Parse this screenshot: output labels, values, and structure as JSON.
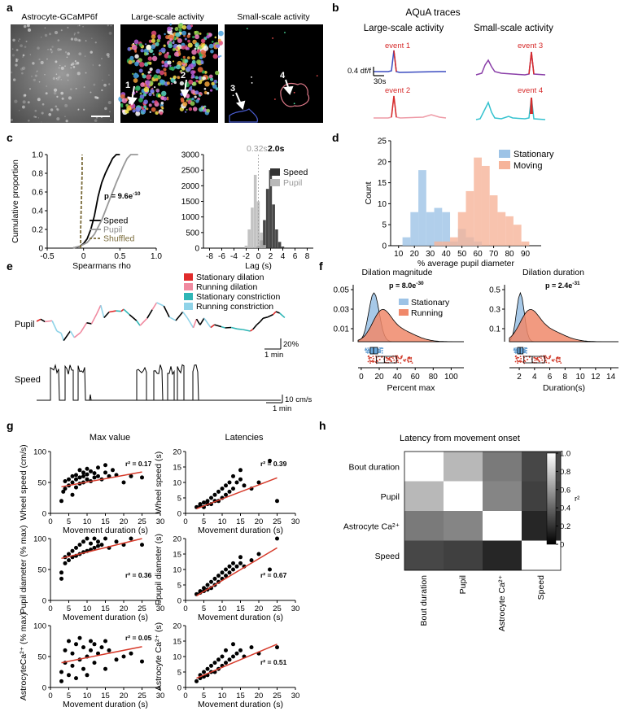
{
  "panels": {
    "a": {
      "letter": "a",
      "titles": [
        "Astrocyte-GCaMP6f",
        "Large-scale activity",
        "Small-scale activity"
      ],
      "markers": [
        "1",
        "2",
        "3",
        "4"
      ]
    },
    "b": {
      "letter": "b",
      "title": "AQuA traces",
      "col_titles": [
        "Large-scale activity",
        "Small-scale activity"
      ],
      "events": [
        "event 1",
        "event 2",
        "event 3",
        "event 4"
      ],
      "scale_y": "0.4 df/f",
      "scale_x": "30s"
    },
    "c": {
      "letter": "c",
      "p_value": "p = 9.6e",
      "p_exp": "-10",
      "top_labels": [
        "0.32s",
        "2.0s"
      ]
    },
    "d": {
      "letter": "d"
    },
    "e": {
      "letter": "e",
      "pupil_label": "Pupil",
      "speed_label": "Speed",
      "legend": [
        "Stationary dilation",
        "Running dilation",
        "Stationary constriction",
        "Running constriction"
      ],
      "legend_colors": [
        "#e02b2b",
        "#f08aa0",
        "#2fb6b6",
        "#8fd3e8"
      ],
      "pupil_scale": "20%",
      "time_scale": "1 min",
      "speed_scale": "10 cm/s"
    },
    "f": {
      "letter": "f",
      "left_title": "Dilation magnitude",
      "left_p": "p = 8.0e",
      "left_p_exp": "-30",
      "right_title": "Dilation duration",
      "right_p": "p = 2.4e",
      "right_p_exp": "-31",
      "legend": [
        "Stationary",
        "Running"
      ],
      "left_yticks": [
        "0.05",
        "0.03",
        "0.01"
      ],
      "right_yticks": [
        "0.5",
        "0.3",
        "0.1"
      ],
      "left_xticks": [
        "0",
        "20",
        "40",
        "60",
        "80",
        "100"
      ],
      "right_xticks": [
        "2",
        "4",
        "6",
        "8",
        "10",
        "12",
        "14"
      ],
      "left_xlabel": "Percent max",
      "right_xlabel": "Duration(s)"
    },
    "g": {
      "letter": "g",
      "col_titles": [
        "Max value",
        "Latencies"
      ],
      "xlabel": "Movement duration (s)",
      "xticks": [
        "0",
        "5",
        "10",
        "15",
        "20",
        "25",
        "30"
      ]
    },
    "h": {
      "letter": "h",
      "title": "Latency from movement onset",
      "row_labels": [
        "Bout duration",
        "Pupil",
        "Astrocyte Ca²⁺",
        "Speed"
      ],
      "col_labels": [
        "Bout duration",
        "Pupil",
        "Astrocyte Ca²⁺",
        "Speed"
      ],
      "colorbar_ticks": [
        "1.0",
        "0.8",
        "0.6",
        "0.4",
        "0.2",
        "0"
      ],
      "colorbar_label": "r²"
    }
  },
  "chart_data": [
    {
      "id": "c-left",
      "type": "line",
      "xlabel": "Spearmans rho",
      "ylabel": "Cumulative proportion",
      "xlim": [
        -0.5,
        1.0
      ],
      "ylim": [
        0,
        1.0
      ],
      "xticks": [
        -0.5,
        0,
        0.5,
        1.0
      ],
      "yticks": [
        0,
        0.2,
        0.4,
        0.6,
        0.8,
        1.0
      ],
      "series": [
        {
          "name": "Speed",
          "color": "#000000",
          "x": [
            -0.15,
            -0.05,
            0.0,
            0.05,
            0.1,
            0.15,
            0.2,
            0.25,
            0.3,
            0.35,
            0.4,
            0.45,
            0.5
          ],
          "y": [
            0,
            0.02,
            0.05,
            0.1,
            0.2,
            0.35,
            0.55,
            0.7,
            0.8,
            0.88,
            0.96,
            1.0,
            1.0
          ]
        },
        {
          "name": "Pupil",
          "color": "#999999",
          "x": [
            -0.15,
            -0.05,
            0.05,
            0.15,
            0.25,
            0.35,
            0.45,
            0.55,
            0.6,
            0.65,
            0.75
          ],
          "y": [
            0,
            0.02,
            0.06,
            0.15,
            0.3,
            0.5,
            0.7,
            0.88,
            0.96,
            1.0,
            1.0
          ]
        },
        {
          "name": "Shuffled",
          "color": "#7a6b3a",
          "dashed": true,
          "x": [
            -0.04,
            -0.04,
            -0.03,
            -0.02,
            -0.02
          ],
          "y": [
            0,
            0.2,
            0.5,
            0.8,
            1.0
          ]
        }
      ]
    },
    {
      "id": "c-right",
      "type": "bar",
      "xlabel": "Lag (s)",
      "ylabel": "",
      "xlim": [
        -9,
        9
      ],
      "ylim": [
        0,
        3000
      ],
      "xticks": [
        -8,
        -6,
        -4,
        -2,
        0,
        2,
        4,
        6,
        8
      ],
      "yticks": [
        0,
        500,
        1000,
        1500,
        2000,
        2500,
        3000
      ],
      "series": [
        {
          "name": "Speed",
          "color": "#333333",
          "x": [
            0,
            0.5,
            1,
            1.5,
            2,
            2.5,
            3,
            3.5,
            4
          ],
          "y": [
            60,
            250,
            900,
            1900,
            2500,
            1400,
            600,
            200,
            50
          ]
        },
        {
          "name": "Pupil",
          "color": "#b8b8b8",
          "x": [
            -2,
            -1.5,
            -1,
            -0.5,
            0,
            0.5,
            1
          ],
          "y": [
            80,
            600,
            1300,
            2350,
            1500,
            500,
            100
          ]
        }
      ]
    },
    {
      "id": "d",
      "type": "bar",
      "xlabel": "% average pupil diameter",
      "ylabel": "Count",
      "xlim": [
        5,
        100
      ],
      "ylim": [
        0,
        25
      ],
      "xticks": [
        10,
        20,
        30,
        40,
        50,
        60,
        70,
        80,
        90
      ],
      "yticks": [
        0,
        5,
        10,
        15,
        20,
        25
      ],
      "series": [
        {
          "name": "Stationary",
          "color": "#9dc3e6",
          "x": [
            15,
            20,
            25,
            30,
            35,
            40,
            45,
            50,
            55,
            60
          ],
          "y": [
            2,
            8,
            18,
            8,
            9,
            8,
            1,
            4,
            2,
            1
          ]
        },
        {
          "name": "Moving",
          "color": "#f6b49a",
          "x": [
            35,
            40,
            45,
            50,
            55,
            60,
            65,
            70,
            75,
            80,
            85,
            90
          ],
          "y": [
            1,
            1,
            2,
            8,
            13,
            21,
            19,
            12,
            8,
            7,
            5,
            1
          ]
        }
      ]
    },
    {
      "id": "g-wheel-max",
      "type": "scatter",
      "xlabel": "Movement duration (s)",
      "ylabel": "Wheel speed (cm/s)",
      "xlim": [
        0,
        30
      ],
      "ylim": [
        0,
        100
      ],
      "yticks": [
        0,
        50,
        100
      ],
      "r2": "r² = 0.17",
      "fit": [
        [
          3,
          43
        ],
        [
          25,
          67
        ]
      ],
      "points": [
        [
          3,
          20
        ],
        [
          3.5,
          35
        ],
        [
          4,
          40
        ],
        [
          4,
          52
        ],
        [
          5,
          45
        ],
        [
          5,
          55
        ],
        [
          6,
          30
        ],
        [
          6,
          50
        ],
        [
          6,
          60
        ],
        [
          7,
          42
        ],
        [
          7,
          55
        ],
        [
          7,
          62
        ],
        [
          8,
          48
        ],
        [
          8,
          58
        ],
        [
          8,
          70
        ],
        [
          9,
          50
        ],
        [
          9,
          60
        ],
        [
          9,
          66
        ],
        [
          10,
          55
        ],
        [
          10,
          63
        ],
        [
          10,
          72
        ],
        [
          11,
          52
        ],
        [
          11,
          68
        ],
        [
          12,
          58
        ],
        [
          12,
          65
        ],
        [
          13,
          60
        ],
        [
          13,
          74
        ],
        [
          14,
          55
        ],
        [
          15,
          66
        ],
        [
          15,
          78
        ],
        [
          16,
          60
        ],
        [
          17,
          70
        ],
        [
          18,
          62
        ],
        [
          20,
          50
        ],
        [
          22,
          60
        ],
        [
          25,
          58
        ]
      ]
    },
    {
      "id": "g-wheel-lat",
      "type": "scatter",
      "xlabel": "Movement duration (s)",
      "ylabel": "Wheel speed (s)",
      "xlim": [
        0,
        30
      ],
      "ylim": [
        0,
        20
      ],
      "yticks": [
        0,
        5,
        10,
        15,
        20
      ],
      "r2": "r² = 0.39",
      "fit": [
        [
          3,
          1.5
        ],
        [
          25,
          11.5
        ]
      ],
      "points": [
        [
          3,
          2
        ],
        [
          4,
          2.5
        ],
        [
          4,
          3
        ],
        [
          5,
          2
        ],
        [
          5,
          3.5
        ],
        [
          6,
          3
        ],
        [
          6,
          4
        ],
        [
          7,
          3
        ],
        [
          7,
          5
        ],
        [
          8,
          4
        ],
        [
          8,
          6
        ],
        [
          9,
          4
        ],
        [
          9,
          7
        ],
        [
          10,
          5
        ],
        [
          10,
          8
        ],
        [
          11,
          6
        ],
        [
          11,
          9
        ],
        [
          12,
          7
        ],
        [
          12,
          10
        ],
        [
          13,
          8
        ],
        [
          13,
          12
        ],
        [
          14,
          10
        ],
        [
          15,
          11
        ],
        [
          15,
          14
        ],
        [
          16,
          9
        ],
        [
          18,
          8
        ],
        [
          20,
          10
        ],
        [
          23,
          17
        ],
        [
          25,
          4
        ]
      ]
    },
    {
      "id": "g-pupil-max",
      "type": "scatter",
      "xlabel": "Movement duration (s)",
      "ylabel": "Pupil diameter (% max)",
      "xlim": [
        0,
        30
      ],
      "ylim": [
        0,
        100
      ],
      "yticks": [
        0,
        50,
        100
      ],
      "r2": "r² = 0.36",
      "fit": [
        [
          3,
          68
        ],
        [
          25,
          100
        ]
      ],
      "points": [
        [
          3,
          35
        ],
        [
          3,
          45
        ],
        [
          4,
          60
        ],
        [
          4,
          70
        ],
        [
          5,
          65
        ],
        [
          5,
          75
        ],
        [
          6,
          70
        ],
        [
          6,
          80
        ],
        [
          7,
          72
        ],
        [
          7,
          85
        ],
        [
          8,
          75
        ],
        [
          8,
          90
        ],
        [
          9,
          78
        ],
        [
          9,
          95
        ],
        [
          10,
          80
        ],
        [
          10,
          100
        ],
        [
          11,
          82
        ],
        [
          11,
          92
        ],
        [
          12,
          85
        ],
        [
          12,
          100
        ],
        [
          13,
          88
        ],
        [
          13,
          95
        ],
        [
          14,
          90
        ],
        [
          15,
          100
        ],
        [
          16,
          85
        ],
        [
          18,
          95
        ],
        [
          20,
          90
        ],
        [
          22,
          100
        ],
        [
          25,
          90
        ]
      ]
    },
    {
      "id": "g-pupil-lat",
      "type": "scatter",
      "xlabel": "Movement duration (s)",
      "ylabel": "Ppupil diameter (s)",
      "xlim": [
        0,
        30
      ],
      "ylim": [
        0,
        20
      ],
      "yticks": [
        0,
        5,
        10,
        15,
        20
      ],
      "r2": "r² = 0.67",
      "fit": [
        [
          3,
          1.5
        ],
        [
          25,
          17
        ]
      ],
      "points": [
        [
          3,
          2
        ],
        [
          4,
          2.5
        ],
        [
          4,
          3
        ],
        [
          5,
          3
        ],
        [
          5,
          4
        ],
        [
          6,
          3.5
        ],
        [
          6,
          5
        ],
        [
          7,
          4
        ],
        [
          7,
          6
        ],
        [
          8,
          5
        ],
        [
          8,
          7
        ],
        [
          9,
          6
        ],
        [
          9,
          8
        ],
        [
          10,
          7
        ],
        [
          10,
          9
        ],
        [
          11,
          8
        ],
        [
          11,
          10
        ],
        [
          12,
          9
        ],
        [
          12,
          11
        ],
        [
          13,
          10
        ],
        [
          13,
          12
        ],
        [
          14,
          11
        ],
        [
          15,
          12
        ],
        [
          15,
          14
        ],
        [
          16,
          11
        ],
        [
          18,
          13
        ],
        [
          20,
          15
        ],
        [
          23,
          10
        ],
        [
          25,
          20
        ]
      ]
    },
    {
      "id": "g-astro-max",
      "type": "scatter",
      "xlabel": "Movement duration (s)",
      "ylabel": "AstrocyteCa²⁺ (% max)",
      "xlim": [
        0,
        30
      ],
      "ylim": [
        0,
        100
      ],
      "yticks": [
        0,
        50,
        100
      ],
      "r2": "r² = 0.05",
      "fit": [
        [
          3,
          40
        ],
        [
          25,
          66
        ]
      ],
      "points": [
        [
          3,
          10
        ],
        [
          3,
          25
        ],
        [
          4,
          40
        ],
        [
          4,
          60
        ],
        [
          5,
          20
        ],
        [
          5,
          75
        ],
        [
          6,
          35
        ],
        [
          6,
          55
        ],
        [
          7,
          15
        ],
        [
          7,
          70
        ],
        [
          8,
          45
        ],
        [
          8,
          80
        ],
        [
          9,
          30
        ],
        [
          9,
          65
        ],
        [
          10,
          50
        ],
        [
          10,
          20
        ],
        [
          11,
          60
        ],
        [
          11,
          75
        ],
        [
          12,
          40
        ],
        [
          12,
          70
        ],
        [
          13,
          55
        ],
        [
          14,
          65
        ],
        [
          15,
          30
        ],
        [
          15,
          75
        ],
        [
          16,
          60
        ],
        [
          18,
          45
        ],
        [
          20,
          50
        ],
        [
          22,
          55
        ],
        [
          25,
          42
        ]
      ]
    },
    {
      "id": "g-astro-lat",
      "type": "scatter",
      "xlabel": "Movement duration (s)",
      "ylabel": "Astrocyte Ca²⁺ (s)",
      "xlim": [
        0,
        30
      ],
      "ylim": [
        0,
        20
      ],
      "yticks": [
        0,
        5,
        10,
        15,
        20
      ],
      "r2": "r² = 0.51",
      "fit": [
        [
          3,
          3
        ],
        [
          25,
          14
        ]
      ],
      "points": [
        [
          3,
          2
        ],
        [
          4,
          3
        ],
        [
          4,
          4
        ],
        [
          5,
          3.5
        ],
        [
          5,
          5
        ],
        [
          6,
          4
        ],
        [
          6,
          6
        ],
        [
          7,
          5
        ],
        [
          7,
          7
        ],
        [
          8,
          5
        ],
        [
          8,
          8
        ],
        [
          9,
          6
        ],
        [
          9,
          9
        ],
        [
          10,
          7
        ],
        [
          10,
          10
        ],
        [
          11,
          8
        ],
        [
          11,
          12
        ],
        [
          12,
          9
        ],
        [
          13,
          10
        ],
        [
          13,
          14
        ],
        [
          14,
          11
        ],
        [
          15,
          12
        ],
        [
          16,
          10
        ],
        [
          18,
          13
        ],
        [
          20,
          11
        ],
        [
          25,
          13
        ]
      ]
    },
    {
      "id": "h",
      "type": "heatmap",
      "rows": [
        "Bout duration",
        "Pupil",
        "Astrocyte Ca²⁺",
        "Speed"
      ],
      "cols": [
        "Bout duration",
        "Pupil",
        "Astrocyte Ca²⁺",
        "Speed"
      ],
      "values": [
        [
          1.0,
          0.72,
          0.48,
          0.28
        ],
        [
          0.72,
          1.0,
          0.52,
          0.25
        ],
        [
          0.48,
          0.52,
          1.0,
          0.15
        ],
        [
          0.28,
          0.25,
          0.15,
          1.0
        ]
      ],
      "zlim": [
        0,
        1
      ]
    }
  ]
}
